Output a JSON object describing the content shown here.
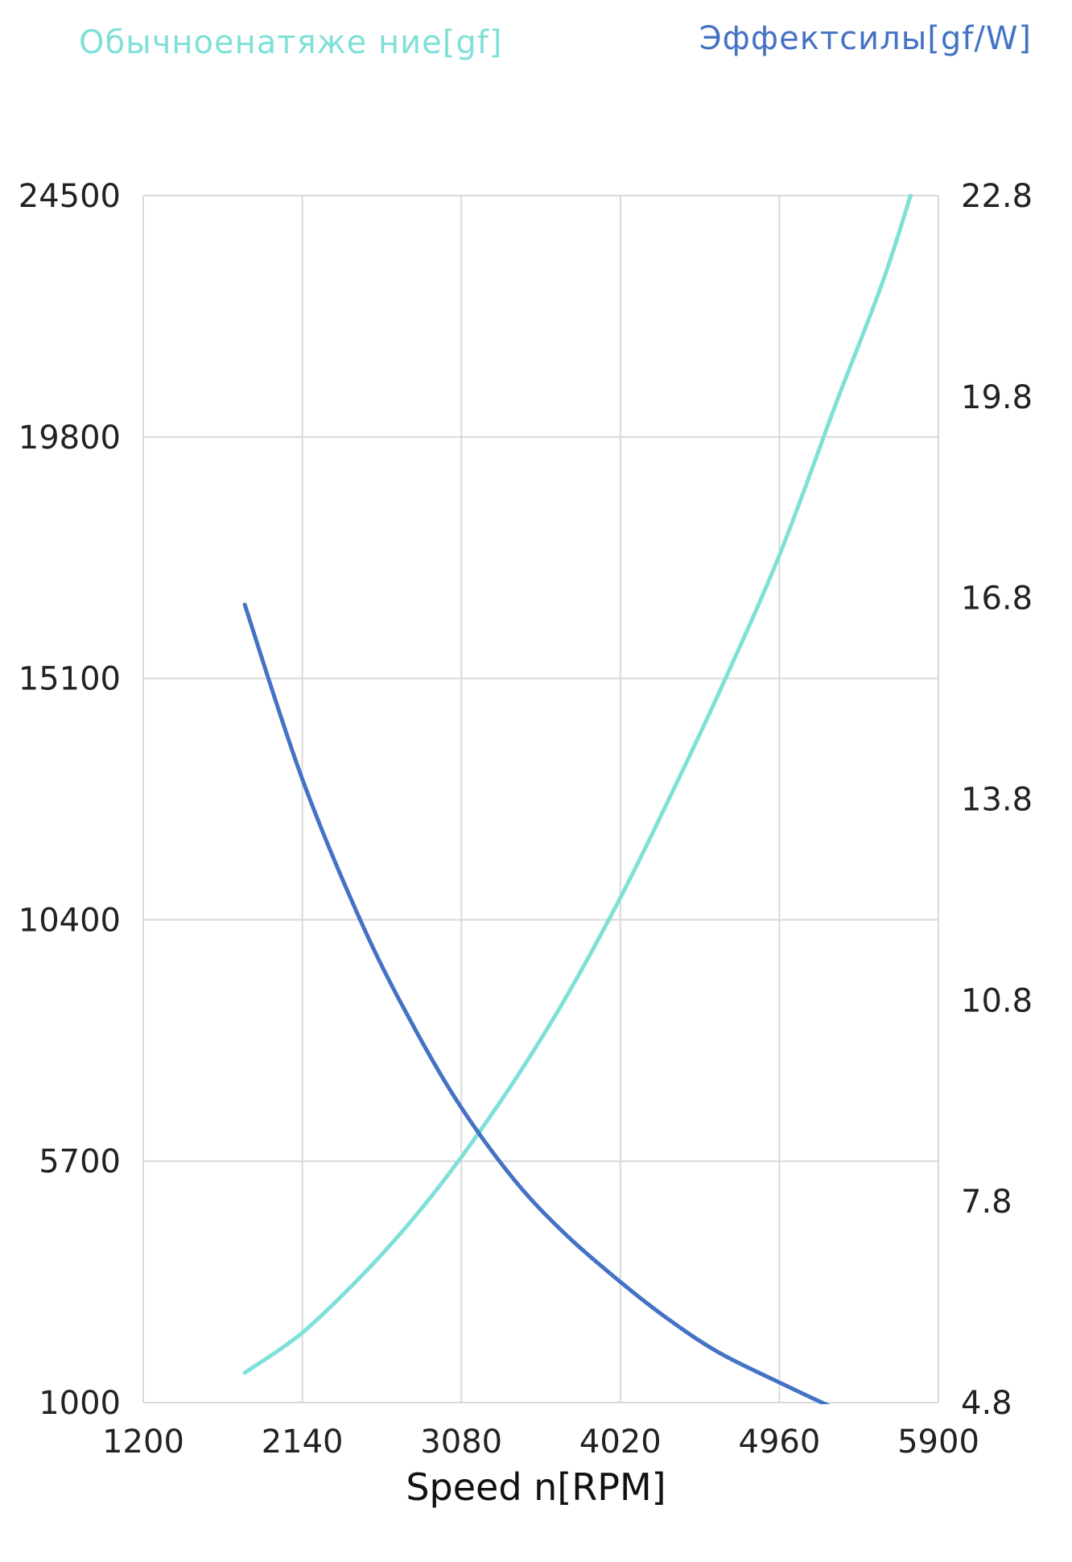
{
  "chart_data": {
    "type": "line",
    "legend": {
      "left_label": "Обычноенатяже ние[gf]",
      "right_label": "Эффектсилы[gf/W]",
      "left_color": "#7fe0d8",
      "right_color": "#4472c4"
    },
    "xlabel": "Speed n[RPM]",
    "xlim": [
      1200,
      5900
    ],
    "xticks": [
      "1200",
      "2140",
      "3080",
      "4020",
      "4960",
      "5900"
    ],
    "y_left": {
      "lim": [
        1000,
        24500
      ],
      "ticks": [
        "1000",
        "5700",
        "10400",
        "15100",
        "19800",
        "24500"
      ]
    },
    "y_right": {
      "lim": [
        4.8,
        22.8
      ],
      "ticks": [
        "4.8",
        "7.8",
        "10.8",
        "13.8",
        "16.8",
        "19.8",
        "22.8"
      ]
    },
    "grid": true,
    "series": [
      {
        "name": "Обычноенатяже ние[gf]",
        "axis": "left",
        "color": "#7fe0d8",
        "x": [
          1800,
          2140,
          2500,
          2800,
          3080,
          3400,
          3700,
          4020,
          4300,
          4600,
          4960,
          5300,
          5600,
          5900
        ],
        "y": [
          1580,
          2360,
          3500,
          4600,
          5780,
          7300,
          8900,
          10830,
          12700,
          14800,
          17500,
          20500,
          23100,
          26300
        ]
      },
      {
        "name": "Эффектсилы[gf/W]",
        "axis": "right",
        "color": "#4472c4",
        "x": [
          1800,
          2140,
          2500,
          2800,
          3080,
          3400,
          3700,
          4020,
          4300,
          4600,
          4960,
          5300,
          5600,
          5900
        ],
        "y": [
          16.7,
          14.1,
          11.9,
          10.4,
          9.2,
          8.1,
          7.3,
          6.6,
          6.05,
          5.55,
          5.1,
          4.7,
          4.4,
          4.1
        ]
      }
    ]
  }
}
